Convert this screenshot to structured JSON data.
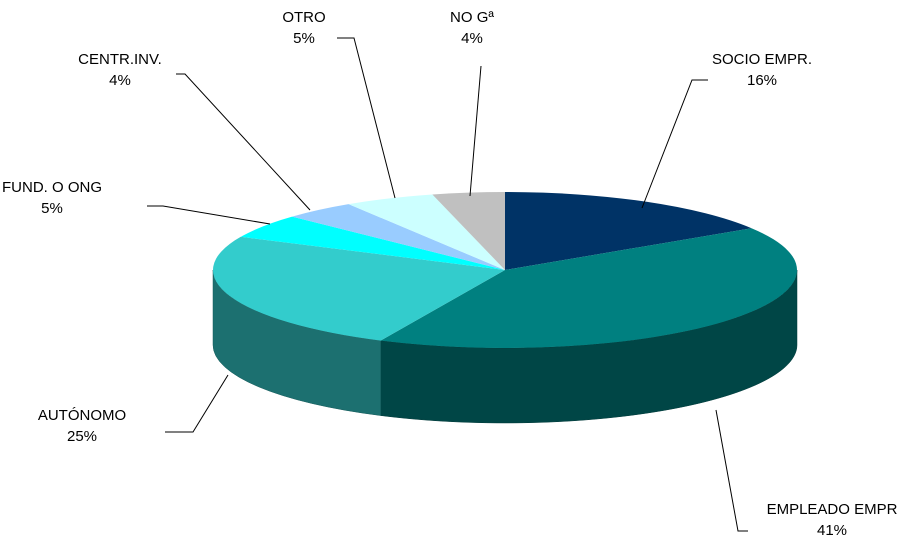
{
  "chart_data": {
    "type": "pie",
    "style": "3d-exploded-free-pie",
    "legend": "none",
    "slices": [
      {
        "name": "SOCIO EMPR.",
        "value": 16,
        "label": "16%",
        "color": "#003366"
      },
      {
        "name": "EMPLEADO EMPR",
        "value": 41,
        "label": "41%",
        "color": "#008080"
      },
      {
        "name": "AUTÓNOMO",
        "value": 25,
        "label": "25%",
        "color": "#33CCCC"
      },
      {
        "name": "FUND. O ONG",
        "value": 5,
        "label": "5%",
        "color": "#00FFFF"
      },
      {
        "name": "CENTR.INV.",
        "value": 4,
        "label": "4%",
        "color": "#99CCFF"
      },
      {
        "name": "OTRO",
        "value": 5,
        "label": "5%",
        "color": "#CCFFFF"
      },
      {
        "name": "NO Gª",
        "value": 4,
        "label": "4%",
        "color": "#C0C0C0"
      }
    ]
  }
}
